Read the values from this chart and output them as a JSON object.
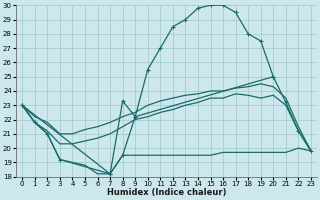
{
  "background_color": "#cce8ec",
  "grid_color": "#aacccc",
  "line_color": "#1a6b6b",
  "xlabel": "Humidex (Indice chaleur)",
  "xlim": [
    -0.5,
    23.5
  ],
  "ylim": [
    18,
    30
  ],
  "xticks": [
    0,
    1,
    2,
    3,
    4,
    5,
    6,
    7,
    8,
    9,
    10,
    11,
    12,
    13,
    14,
    15,
    16,
    17,
    18,
    19,
    20,
    21,
    22,
    23
  ],
  "yticks": [
    18,
    19,
    20,
    21,
    22,
    23,
    24,
    25,
    26,
    27,
    28,
    29,
    30
  ],
  "curves": [
    {
      "x": [
        0,
        1,
        2,
        3,
        7,
        8,
        9,
        10,
        11,
        12,
        13,
        14,
        15,
        16,
        17,
        18,
        19,
        20
      ],
      "y": [
        23.0,
        21.8,
        21.0,
        19.2,
        18.2,
        19.5,
        22.2,
        25.5,
        27.0,
        28.5,
        29.0,
        29.8,
        30.0,
        30.0,
        29.5,
        28.0,
        27.5,
        25.0
      ],
      "marked": true
    },
    {
      "x": [
        0,
        7,
        8,
        9,
        20,
        21,
        22,
        23
      ],
      "y": [
        23.0,
        18.2,
        23.3,
        22.2,
        25.0,
        23.2,
        21.2,
        19.8
      ],
      "marked": true
    },
    {
      "x": [
        0,
        1,
        2,
        3,
        4,
        5,
        6,
        7,
        8,
        9,
        10,
        11,
        12,
        13,
        14,
        15,
        16,
        17,
        18,
        19,
        20,
        21,
        22,
        23
      ],
      "y": [
        23.0,
        22.2,
        21.8,
        21.0,
        21.0,
        21.3,
        21.5,
        21.8,
        22.2,
        22.5,
        23.0,
        23.3,
        23.5,
        23.7,
        23.8,
        24.0,
        24.0,
        24.2,
        24.3,
        24.5,
        24.3,
        23.5,
        21.5,
        19.8
      ],
      "marked": false
    },
    {
      "x": [
        0,
        1,
        2,
        3,
        4,
        5,
        6,
        7,
        8,
        9,
        10,
        11,
        12,
        13,
        14,
        15,
        16,
        17,
        18,
        19,
        20,
        21,
        22,
        23
      ],
      "y": [
        23.0,
        21.8,
        21.2,
        20.3,
        20.3,
        20.5,
        20.7,
        21.0,
        21.5,
        22.0,
        22.2,
        22.5,
        22.7,
        23.0,
        23.2,
        23.5,
        23.5,
        23.8,
        23.7,
        23.5,
        23.7,
        23.0,
        21.2,
        19.8
      ],
      "marked": false
    },
    {
      "x": [
        0,
        1,
        2,
        3,
        4,
        5,
        6,
        7,
        8,
        9,
        10,
        11,
        12,
        13,
        14,
        15,
        16,
        17,
        18,
        19,
        20,
        21,
        22,
        23
      ],
      "y": [
        23.0,
        21.8,
        21.0,
        19.2,
        19.0,
        18.8,
        18.2,
        18.2,
        19.5,
        19.5,
        19.5,
        19.5,
        19.5,
        19.5,
        19.5,
        19.5,
        19.7,
        19.7,
        19.7,
        19.7,
        19.7,
        19.7,
        20.0,
        19.8
      ],
      "marked": false
    }
  ]
}
